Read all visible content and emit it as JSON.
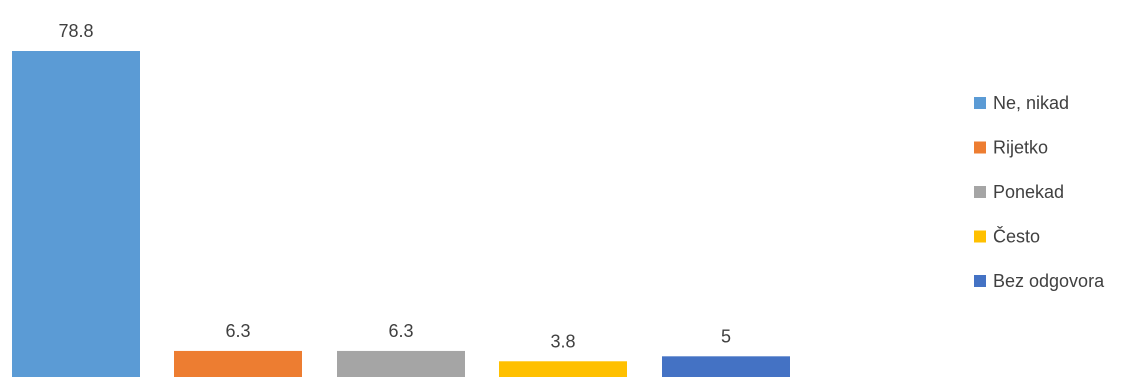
{
  "chart_data": {
    "type": "bar",
    "series": [
      {
        "name": "Ne, nikad",
        "value": 78.8,
        "color": "#5B9BD5"
      },
      {
        "name": "Rijetko",
        "value": 6.3,
        "color": "#ED7D31"
      },
      {
        "name": "Ponekad",
        "value": 6.3,
        "color": "#A5A5A5"
      },
      {
        "name": "Često",
        "value": 3.8,
        "color": "#FFC000"
      },
      {
        "name": "Bez odgovora",
        "value": 5,
        "color": "#4472C4"
      }
    ],
    "data_labels": [
      "78.8",
      "6.3",
      "6.3",
      "3.8",
      "5"
    ],
    "title": "",
    "xlabel": "",
    "ylabel": "",
    "ylim": [
      0,
      78.8
    ],
    "grid": false,
    "axes_visible": false,
    "legend_position": "right"
  }
}
